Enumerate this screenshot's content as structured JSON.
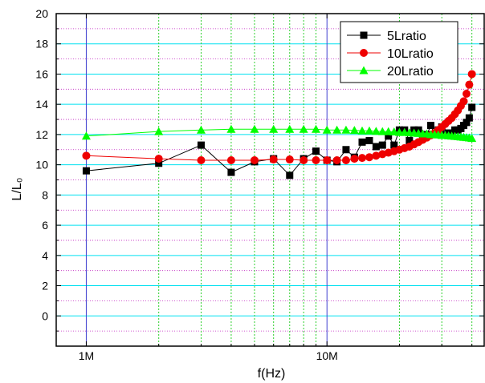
{
  "chart_data": {
    "type": "scatter",
    "title": "",
    "xlabel": "f(Hz)",
    "ylabel": "L/L₀",
    "xscale": "log",
    "xlim": [
      750000,
      45000000
    ],
    "ylim": [
      -2,
      20
    ],
    "yticks": [
      0,
      2,
      4,
      6,
      8,
      10,
      12,
      14,
      16,
      18,
      20
    ],
    "xtick_values": [
      1000000,
      10000000
    ],
    "xtick_labels": [
      "1M",
      "10M"
    ],
    "legend": "top-right",
    "grid": {
      "major_y_color": "#00e0f0",
      "minor_y_color": "#c020c0",
      "minor_x_color": "#30d030",
      "major_x_color": "#4040d0"
    },
    "series": [
      {
        "name": "5Lratio",
        "color": "#000000",
        "marker": "square",
        "line": true,
        "x": [
          1000000,
          2000000,
          3000000,
          4000000,
          5000000,
          6000000,
          7000000,
          8000000,
          9000000,
          10000000,
          11000000,
          12000000,
          13000000,
          14000000,
          15000000,
          16000000,
          17000000,
          18000000,
          19000000,
          20000000,
          21000000,
          22000000,
          23000000,
          24000000,
          25000000,
          26000000,
          27000000,
          28000000,
          29000000,
          30000000,
          31000000,
          32000000,
          33000000,
          34000000,
          35000000,
          36000000,
          37000000,
          38000000,
          39000000,
          40000000
        ],
        "y": [
          9.6,
          10.1,
          11.3,
          9.5,
          10.2,
          10.4,
          9.3,
          10.4,
          10.9,
          10.3,
          10.2,
          11.0,
          10.5,
          11.5,
          11.6,
          11.2,
          11.3,
          11.9,
          11.3,
          12.3,
          12.3,
          11.6,
          12.3,
          12.3,
          11.9,
          12.0,
          12.6,
          12.0,
          12.3,
          12.5,
          12.0,
          12.1,
          12.1,
          12.3,
          12.3,
          12.4,
          12.6,
          12.8,
          13.1,
          13.8
        ]
      },
      {
        "name": "10Lratio",
        "color": "#ee0000",
        "marker": "circle",
        "line": true,
        "x": [
          1000000,
          2000000,
          3000000,
          4000000,
          5000000,
          6000000,
          7000000,
          8000000,
          9000000,
          10000000,
          11000000,
          12000000,
          13000000,
          14000000,
          15000000,
          16000000,
          17000000,
          18000000,
          19000000,
          20000000,
          21000000,
          22000000,
          23000000,
          24000000,
          25000000,
          26000000,
          27000000,
          28000000,
          29000000,
          30000000,
          31000000,
          32000000,
          33000000,
          34000000,
          35000000,
          36000000,
          37000000,
          38000000,
          39000000,
          40000000
        ],
        "y": [
          10.6,
          10.4,
          10.3,
          10.3,
          10.3,
          10.35,
          10.35,
          10.3,
          10.3,
          10.3,
          10.3,
          10.3,
          10.4,
          10.45,
          10.5,
          10.6,
          10.7,
          10.8,
          10.9,
          11.0,
          11.1,
          11.2,
          11.35,
          11.5,
          11.65,
          11.8,
          11.95,
          12.1,
          12.3,
          12.5,
          12.7,
          12.9,
          13.1,
          13.35,
          13.6,
          13.9,
          14.2,
          14.7,
          15.3,
          16.0
        ]
      },
      {
        "name": "20Lratio",
        "color": "#00ff00",
        "marker": "triangle",
        "line": true,
        "x": [
          1000000,
          2000000,
          3000000,
          4000000,
          5000000,
          6000000,
          7000000,
          8000000,
          9000000,
          10000000,
          11000000,
          12000000,
          13000000,
          14000000,
          15000000,
          16000000,
          17000000,
          18000000,
          19000000,
          20000000,
          21000000,
          22000000,
          23000000,
          24000000,
          25000000,
          26000000,
          27000000,
          28000000,
          29000000,
          30000000,
          31000000,
          32000000,
          33000000,
          34000000,
          35000000,
          36000000,
          37000000,
          38000000,
          39000000,
          40000000
        ],
        "y": [
          11.9,
          12.2,
          12.3,
          12.35,
          12.35,
          12.35,
          12.35,
          12.35,
          12.35,
          12.3,
          12.3,
          12.3,
          12.28,
          12.25,
          12.25,
          12.22,
          12.2,
          12.2,
          12.18,
          12.15,
          12.15,
          12.12,
          12.1,
          12.08,
          12.05,
          12.05,
          12.0,
          12.0,
          11.98,
          11.95,
          11.95,
          11.92,
          11.9,
          11.88,
          11.86,
          11.84,
          11.82,
          11.8,
          11.78,
          11.75
        ]
      }
    ]
  }
}
